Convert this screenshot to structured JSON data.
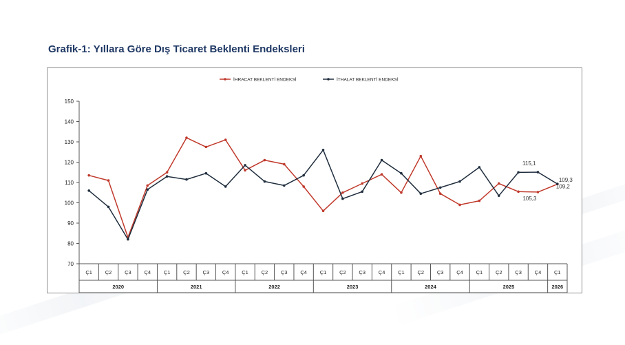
{
  "title": "Grafik-1: Yıllara Göre Dış Ticaret Beklenti Endeksleri",
  "chart_data": {
    "type": "line",
    "legend_position": "top-center",
    "grid": false,
    "ylim": [
      70,
      150
    ],
    "yticks": [
      70,
      80,
      90,
      100,
      110,
      120,
      130,
      140,
      150
    ],
    "quarters": [
      "Ç1",
      "Ç2",
      "Ç3",
      "Ç4",
      "Ç1",
      "Ç2",
      "Ç3",
      "Ç4",
      "Ç1",
      "Ç2",
      "Ç3",
      "Ç4",
      "Ç1",
      "Ç2",
      "Ç3",
      "Ç4",
      "Ç1",
      "Ç2",
      "Ç3",
      "Ç4",
      "Ç1",
      "Ç2",
      "Ç3",
      "Ç4",
      "Ç1"
    ],
    "years": [
      {
        "label": "2020",
        "count": 4
      },
      {
        "label": "2021",
        "count": 4
      },
      {
        "label": "2022",
        "count": 4
      },
      {
        "label": "2023",
        "count": 4
      },
      {
        "label": "2024",
        "count": 4
      },
      {
        "label": "2025",
        "count": 4
      },
      {
        "label": "2026",
        "count": 1
      }
    ],
    "series": [
      {
        "name": "İHRACAT BEKLENTİ ENDEKSİ",
        "color": "#c0392b",
        "values": [
          113.5,
          111,
          83,
          108.5,
          115,
          132,
          127.5,
          131,
          116,
          121,
          119,
          108,
          96,
          105,
          109.5,
          114,
          105,
          123,
          104.5,
          99,
          101,
          109.5,
          105.5,
          105.3,
          109.2
        ]
      },
      {
        "name": "İTHALAT BEKLENTİ ENDEKSİ",
        "color": "#1f2d3d",
        "values": [
          106,
          98,
          82,
          106.5,
          113,
          111.5,
          114.5,
          108,
          118.5,
          110.5,
          108.5,
          113.5,
          126,
          102,
          105.5,
          121,
          114.5,
          104.5,
          107.5,
          110.5,
          117.5,
          103.5,
          115,
          115.1,
          109.3
        ]
      }
    ],
    "annotations": [
      {
        "text": "115,1",
        "series": 1,
        "index": 23
      },
      {
        "text": "109,3",
        "series": 1,
        "index": 24
      },
      {
        "text": "105,3",
        "series": 0,
        "index": 23
      },
      {
        "text": "109,2",
        "series": 0,
        "index": 24
      }
    ]
  }
}
